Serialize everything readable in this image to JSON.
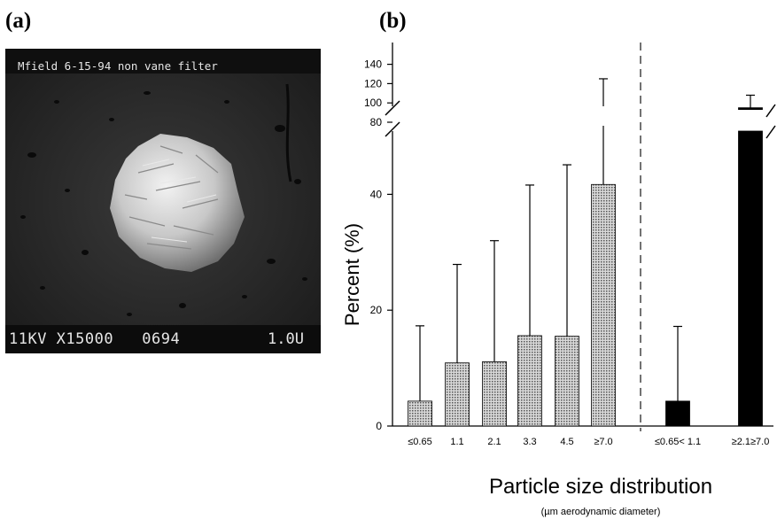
{
  "panels": {
    "a_label": "(a)",
    "b_label": "(b)"
  },
  "micrograph": {
    "header_text": "Mfield 6-15-94 non vane filter",
    "footer_left": "11KV X15000   0694",
    "footer_right": "1.0U"
  },
  "chart_data": {
    "type": "bar",
    "ylabel": "Percent (%)",
    "xlabel": "Particle size distribution",
    "xlabel_sub": "(µm aerodynamic diameter)",
    "y_ticks_lower": [
      0,
      20,
      40
    ],
    "y_ticks_upper": [
      80,
      100,
      120,
      140
    ],
    "axis_break": true,
    "groups": [
      {
        "fill": "stippled",
        "color": "#b5b5b5",
        "categories": [
          "≤0.65",
          "1.1",
          "2.1",
          "3.3",
          "4.5",
          "≥7.0"
        ],
        "values": [
          4.3,
          10.9,
          11.1,
          15.6,
          15.5,
          41.7
        ],
        "error_upper": [
          17.3,
          27.9,
          32.0,
          41.6,
          45.1,
          125
        ]
      },
      {
        "fill": "solid",
        "color": "#000000",
        "categories": [
          "≤0.65< 1.1",
          "≥2.1≥7.0"
        ],
        "values": [
          4.3,
          95
        ],
        "error_upper": [
          17.2,
          108
        ]
      }
    ]
  }
}
